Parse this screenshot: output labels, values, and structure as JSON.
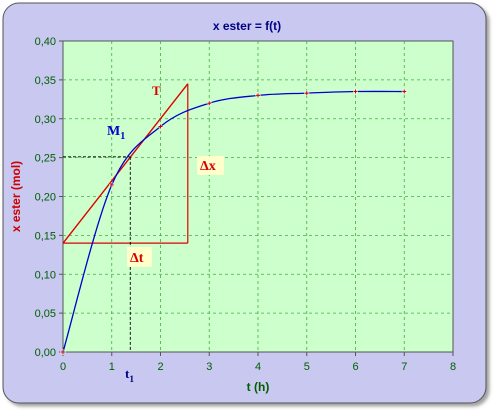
{
  "chart_data": {
    "type": "line",
    "title": "x ester = f(t)",
    "xlabel": "t (h)",
    "ylabel": "x ester (mol)",
    "xlim": [
      0,
      8
    ],
    "ylim": [
      0,
      0.4
    ],
    "x_ticks": [
      "0",
      "1",
      "2",
      "3",
      "4",
      "5",
      "6",
      "7",
      "8"
    ],
    "y_ticks": [
      "0,00",
      "0,05",
      "0,10",
      "0,15",
      "0,20",
      "0,25",
      "0,30",
      "0,35",
      "0,40"
    ],
    "grid": true,
    "series": [
      {
        "points": [
          {
            "x": 0,
            "y": 0.0
          },
          {
            "x": 1,
            "y": 0.215
          },
          {
            "x": 2,
            "y": 0.29
          },
          {
            "x": 3,
            "y": 0.32
          },
          {
            "x": 4,
            "y": 0.33
          },
          {
            "x": 5,
            "y": 0.333
          },
          {
            "x": 6,
            "y": 0.335
          },
          {
            "x": 7,
            "y": 0.335
          }
        ]
      }
    ],
    "annotations": {
      "tangent_label": "T",
      "point_label": "M",
      "point_subscript": "1",
      "point": {
        "x": 1.38,
        "y": 0.251
      },
      "tangent": {
        "from": {
          "x": 0,
          "y": 0.14
        },
        "to": {
          "x": 2.56,
          "y": 0.345
        }
      },
      "delta_x_label": "Δx",
      "delta_t_label": "Δt",
      "t1_label": "t",
      "t1_subscript": "1"
    },
    "colors": {
      "background": "#c8c8f0",
      "plot_area": "#ccffcc",
      "curve": "#0000cc",
      "tangent": "#dd0000",
      "axis_text": "#006000",
      "title": "#000080",
      "ylabel": "#cc0000"
    }
  }
}
